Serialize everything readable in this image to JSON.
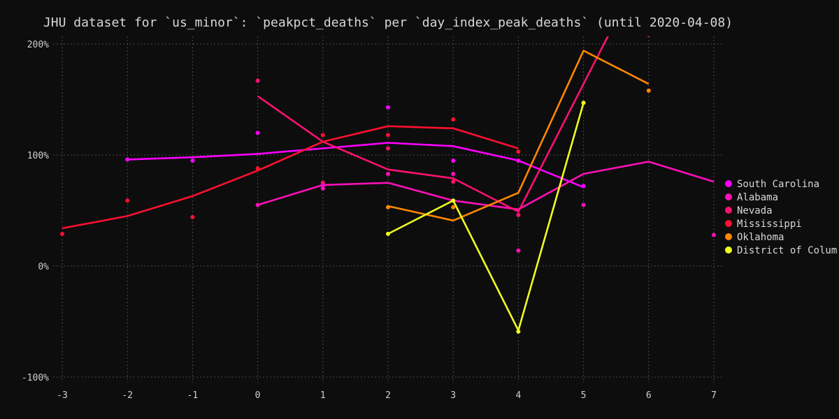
{
  "chart_data": {
    "type": "line",
    "title": "JHU dataset for `us_minor`: `peakpct_deaths` per `day_index_peak_deaths` (until 2020-04-08)",
    "xlabel": "",
    "ylabel": "",
    "xlim": [
      -3,
      7
    ],
    "ylim": [
      -100,
      200
    ],
    "x_ticks": [
      -3,
      -2,
      -1,
      0,
      1,
      2,
      3,
      4,
      5,
      6,
      7
    ],
    "y_ticks": [
      -100,
      0,
      100,
      200
    ],
    "y_tick_labels": [
      "-100%",
      "0%",
      "100%",
      "200%"
    ],
    "grid": true,
    "legend_position": "right",
    "series": [
      {
        "name": "South Carolina",
        "color": "#ff00ff",
        "line": [
          [
            -2,
            96
          ],
          [
            -1,
            98
          ],
          [
            0,
            101
          ],
          [
            1,
            106
          ],
          [
            2,
            111
          ],
          [
            3,
            108
          ],
          [
            4,
            95
          ],
          [
            5,
            71
          ]
        ],
        "points": [
          [
            -2,
            96
          ],
          [
            -1,
            95
          ],
          [
            0,
            120
          ],
          [
            1,
            73
          ],
          [
            2,
            143
          ],
          [
            3,
            95
          ],
          [
            4,
            95
          ],
          [
            5,
            72
          ]
        ]
      },
      {
        "name": "Alabama",
        "color": "#ff10b8",
        "line": [
          [
            0,
            55
          ],
          [
            1,
            73
          ],
          [
            2,
            75
          ],
          [
            3,
            59
          ],
          [
            4,
            51
          ],
          [
            5,
            83
          ],
          [
            6,
            94
          ],
          [
            7,
            76
          ]
        ],
        "points": [
          [
            0,
            55
          ],
          [
            1,
            70
          ],
          [
            2,
            83
          ],
          [
            3,
            83
          ],
          [
            4,
            14
          ],
          [
            5,
            55
          ],
          [
            7,
            28
          ]
        ]
      },
      {
        "name": "Nevada",
        "color": "#ff1070",
        "line": [
          [
            0,
            153
          ],
          [
            1,
            112
          ],
          [
            2,
            87
          ],
          [
            3,
            79
          ],
          [
            4,
            49
          ],
          [
            5,
            164
          ],
          [
            5.4,
            210
          ]
        ],
        "points": [
          [
            0,
            167
          ],
          [
            1,
            75
          ],
          [
            2,
            106
          ],
          [
            3,
            76
          ],
          [
            4,
            46
          ],
          [
            6,
            208
          ]
        ]
      },
      {
        "name": "Mississippi",
        "color": "#ff1030",
        "line": [
          [
            -3,
            34
          ],
          [
            -2,
            45
          ],
          [
            -1,
            63
          ],
          [
            0,
            86
          ],
          [
            1,
            112
          ],
          [
            2,
            126
          ],
          [
            3,
            124
          ],
          [
            4,
            106
          ]
        ],
        "points": [
          [
            -3,
            29
          ],
          [
            -2,
            59
          ],
          [
            -1,
            44
          ],
          [
            0,
            88
          ],
          [
            1,
            118
          ],
          [
            2,
            118
          ],
          [
            3,
            132
          ],
          [
            4,
            103
          ]
        ]
      },
      {
        "name": "Oklahoma",
        "color": "#ff8800",
        "line": [
          [
            2,
            54
          ],
          [
            3,
            41
          ],
          [
            4,
            66
          ],
          [
            5,
            194
          ],
          [
            6,
            164
          ]
        ],
        "points": [
          [
            2,
            53
          ],
          [
            3,
            53
          ],
          [
            6,
            158
          ]
        ]
      },
      {
        "name": "District of Colum",
        "color": "#f0ff20",
        "line": [
          [
            2,
            29
          ],
          [
            3,
            59
          ],
          [
            4,
            -58
          ],
          [
            5,
            147
          ]
        ],
        "points": [
          [
            2,
            29
          ],
          [
            3,
            59
          ],
          [
            4,
            -59
          ],
          [
            5,
            147
          ]
        ]
      }
    ]
  }
}
